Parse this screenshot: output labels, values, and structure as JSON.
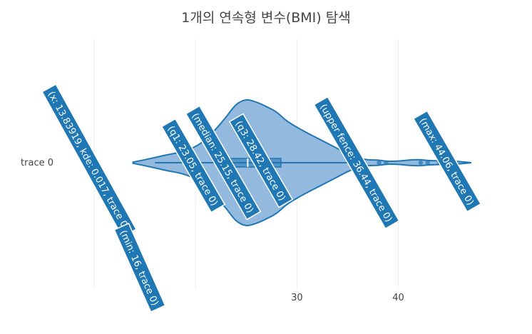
{
  "chart_data": {
    "type": "violin",
    "title": "1개의 연속형 변수(BMI) 탐색",
    "orientation": "h",
    "category": "trace 0",
    "xticks": [
      30,
      40
    ],
    "xlim": [
      8.1,
      49.6
    ],
    "grid": true,
    "color": "#1f77b4",
    "fill_color": "#8db6dc",
    "stats": {
      "min": 16,
      "q1": 23.05,
      "median": 25.15,
      "q3": 28.42,
      "upper_fence": 36.44,
      "max": 44.06
    },
    "violin_extent": [
      13.84,
      47.2
    ],
    "density_profile": [
      [
        13.84,
        0.017
      ],
      [
        15,
        0.08
      ],
      [
        17,
        0.2
      ],
      [
        19,
        0.32
      ],
      [
        20.5,
        0.52
      ],
      [
        22,
        0.9
      ],
      [
        23,
        1.22
      ],
      [
        24,
        1.55
      ],
      [
        25,
        1.68
      ],
      [
        26,
        1.62
      ],
      [
        27,
        1.5
      ],
      [
        28,
        1.35
      ],
      [
        29,
        1.12
      ],
      [
        30,
        0.95
      ],
      [
        31,
        0.8
      ],
      [
        32,
        0.66
      ],
      [
        33,
        0.52
      ],
      [
        34,
        0.38
      ],
      [
        35,
        0.24
      ],
      [
        36,
        0.13
      ],
      [
        37,
        0.08
      ],
      [
        38,
        0.07
      ],
      [
        39,
        0.04
      ],
      [
        40,
        0.045
      ],
      [
        41,
        0.07
      ],
      [
        42,
        0.08
      ],
      [
        43,
        0.06
      ],
      [
        44,
        0.05
      ],
      [
        45,
        0.045
      ],
      [
        46,
        0.03
      ],
      [
        47.2,
        0.0
      ]
    ],
    "outliers": [
      38.1,
      38.8,
      42.2,
      42.9,
      44.06
    ],
    "hover_labels": [
      {
        "text": "(x: 13.83919, kde: 0.017, trace 0)"
      },
      {
        "text": "(min: 16, trace 0)"
      },
      {
        "text": "(q1: 23.05, trace 0)"
      },
      {
        "text": "(median: 25.15, trace 0)"
      },
      {
        "text": "(q3: 28.42, trace 0)"
      },
      {
        "text": "(upper fence: 36.44, trace 0)"
      },
      {
        "text": "(max: 44.06, trace 0)"
      }
    ]
  }
}
